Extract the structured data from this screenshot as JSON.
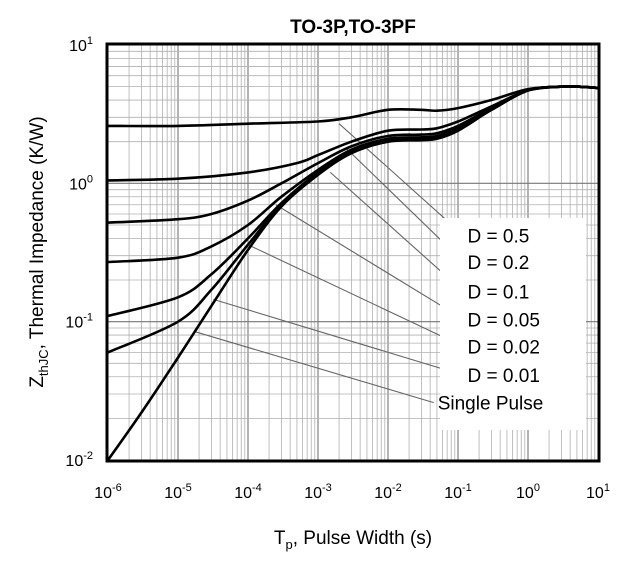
{
  "chart_data": {
    "type": "line",
    "title": "TO-3P,TO-3PF",
    "xlabel": {
      "main": "T",
      "sub": "p",
      "rest": ", Pulse Width (s)"
    },
    "ylabel": {
      "main": "Z",
      "sub": "thJC",
      "rest": ",  Thermal Impedance (K/W)"
    },
    "x_scale": "log",
    "y_scale": "log",
    "xlim": [
      1e-06,
      10
    ],
    "ylim": [
      0.01,
      10
    ],
    "grid": true,
    "x_ticks": [
      {
        "base": "10",
        "exp": "-6"
      },
      {
        "base": "10",
        "exp": "-5"
      },
      {
        "base": "10",
        "exp": "-4"
      },
      {
        "base": "10",
        "exp": "-3"
      },
      {
        "base": "10",
        "exp": "-2"
      },
      {
        "base": "10",
        "exp": "-1"
      },
      {
        "base": "10",
        "exp": "0"
      },
      {
        "base": "10",
        "exp": "1"
      }
    ],
    "y_ticks": [
      {
        "base": "10",
        "exp": "-2"
      },
      {
        "base": "10",
        "exp": "-1"
      },
      {
        "base": "10",
        "exp": "0"
      },
      {
        "base": "10",
        "exp": "1"
      }
    ],
    "legend_placement": "bottom-right",
    "series": [
      {
        "name": "D = 0.5",
        "x": [
          1e-06,
          1e-05,
          0.0001,
          0.001,
          0.003,
          0.01,
          0.03,
          0.05,
          0.1,
          0.3,
          1,
          3,
          5,
          10
        ],
        "y": [
          2.6,
          2.6,
          2.7,
          2.8,
          3.0,
          3.4,
          3.4,
          3.35,
          3.5,
          4.0,
          4.8,
          5.0,
          5.0,
          4.9
        ]
      },
      {
        "name": "D = 0.2",
        "x": [
          1e-06,
          1e-05,
          0.0001,
          0.0005,
          0.001,
          0.003,
          0.01,
          0.03,
          0.05,
          0.1,
          0.3,
          1,
          3,
          5,
          10
        ],
        "y": [
          1.05,
          1.08,
          1.2,
          1.4,
          1.6,
          2.0,
          2.4,
          2.45,
          2.5,
          2.8,
          3.6,
          4.7,
          5.0,
          5.0,
          4.9
        ]
      },
      {
        "name": "D = 0.1",
        "x": [
          1e-06,
          1e-05,
          3e-05,
          0.0001,
          0.0003,
          0.001,
          0.003,
          0.01,
          0.03,
          0.05,
          0.1,
          0.3,
          1,
          3,
          5,
          10
        ],
        "y": [
          0.52,
          0.55,
          0.6,
          0.75,
          1.0,
          1.4,
          1.85,
          2.2,
          2.25,
          2.3,
          2.6,
          3.5,
          4.7,
          5.0,
          5.0,
          4.9
        ]
      },
      {
        "name": "D = 0.05",
        "x": [
          1e-06,
          1e-05,
          3e-05,
          0.0001,
          0.0003,
          0.001,
          0.003,
          0.01,
          0.03,
          0.05,
          0.1,
          0.3,
          1,
          3,
          5,
          10
        ],
        "y": [
          0.27,
          0.29,
          0.35,
          0.5,
          0.8,
          1.25,
          1.75,
          2.1,
          2.15,
          2.2,
          2.5,
          3.4,
          4.7,
          5.0,
          5.0,
          4.9
        ]
      },
      {
        "name": "D = 0.02",
        "x": [
          1e-06,
          1e-05,
          3e-05,
          0.0001,
          0.0003,
          0.001,
          0.003,
          0.01,
          0.03,
          0.05,
          0.1,
          0.3,
          1,
          3,
          5,
          10
        ],
        "y": [
          0.11,
          0.15,
          0.22,
          0.4,
          0.72,
          1.2,
          1.7,
          2.05,
          2.1,
          2.15,
          2.45,
          3.4,
          4.7,
          5.0,
          5.0,
          4.9
        ]
      },
      {
        "name": "D = 0.01",
        "x": [
          1e-06,
          1e-05,
          3e-05,
          0.0001,
          0.0003,
          0.001,
          0.003,
          0.01,
          0.03,
          0.05,
          0.1,
          0.3,
          1,
          3,
          5,
          10
        ],
        "y": [
          0.06,
          0.1,
          0.17,
          0.36,
          0.7,
          1.18,
          1.68,
          2.02,
          2.07,
          2.12,
          2.42,
          3.4,
          4.7,
          5.0,
          5.0,
          4.9
        ]
      },
      {
        "name": "Single Pulse",
        "x": [
          1e-06,
          3e-06,
          1e-05,
          3e-05,
          0.0001,
          0.0003,
          0.001,
          0.003,
          0.01,
          0.03,
          0.05,
          0.1,
          0.3,
          1,
          3,
          5,
          10
        ],
        "y": [
          0.01,
          0.022,
          0.055,
          0.13,
          0.33,
          0.68,
          1.15,
          1.65,
          2.0,
          2.05,
          2.1,
          2.4,
          3.4,
          4.7,
          5.0,
          5.0,
          4.9
        ]
      }
    ],
    "annotations": [
      {
        "label": "D = 0.5",
        "from": [
          0.002,
          2.7
        ],
        "to": [
          0.12,
          0.42
        ]
      },
      {
        "label": "D = 0.2",
        "from": [
          0.0025,
          1.8
        ],
        "to": [
          0.12,
          0.27
        ]
      },
      {
        "label": "D = 0.1",
        "from": [
          0.0015,
          1.2
        ],
        "to": [
          0.12,
          0.165
        ]
      },
      {
        "label": "D = 0.05",
        "from": [
          0.00025,
          0.7
        ],
        "to": [
          0.12,
          0.104
        ]
      },
      {
        "label": "D = 0.02",
        "from": [
          0.0001,
          0.36
        ],
        "to": [
          0.12,
          0.066
        ]
      },
      {
        "label": "D = 0.01",
        "from": [
          3.2e-05,
          0.145
        ],
        "to": [
          0.12,
          0.041
        ]
      },
      {
        "label": "Single Pulse",
        "from": [
          1.7e-05,
          0.085
        ],
        "to": [
          0.045,
          0.026
        ]
      }
    ]
  }
}
